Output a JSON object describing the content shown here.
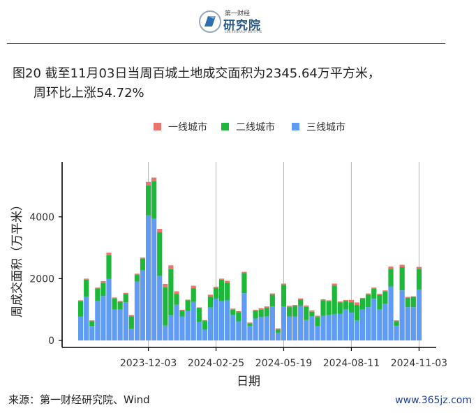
{
  "header": {
    "logo_line1": "第一财经",
    "logo_line2": "研究院",
    "logo_line3": "CBN RESEARCH INSTITUTE"
  },
  "title": {
    "line1": "图20 截至11月03日当周百城土地成交面积为2345.64万平方米，",
    "line2": "周环比上涨54.72%"
  },
  "footer": {
    "source": "来源：第一财经研究院、Wind",
    "watermark": "www.365jz.com"
  },
  "colors": {
    "tier1": "#E8766E",
    "tier2": "#1DB83A",
    "tier3": "#5F9BF2"
  },
  "chart_data": {
    "type": "bar",
    "stacked": true,
    "xlabel": "日期",
    "ylabel": "周成交面积（万平米）",
    "ylim": [
      0,
      5800
    ],
    "yticks": [
      0,
      2000,
      4000
    ],
    "xtick_labels": [
      "2023-12-03",
      "2024-02-25",
      "2024-05-19",
      "2024-08-11",
      "2024-11-03"
    ],
    "xtick_bar_index": [
      12,
      24,
      36,
      48,
      60
    ],
    "grid": "vertical lines at x ticks",
    "legend_position": "top",
    "series": [
      {
        "name": "一线城市",
        "color": "#E8766E",
        "values": [
          30,
          30,
          30,
          30,
          60,
          80,
          30,
          30,
          30,
          40,
          40,
          30,
          120,
          120,
          110,
          110,
          120,
          90,
          20,
          20,
          80,
          20,
          30,
          60,
          40,
          30,
          60,
          30,
          30,
          40,
          40,
          30,
          40,
          40,
          40,
          40,
          40,
          40,
          30,
          40,
          40,
          40,
          40,
          30,
          30,
          60,
          30,
          30,
          80,
          80,
          30,
          40,
          40,
          40,
          40,
          70,
          30,
          80,
          30,
          30,
          60
        ]
      },
      {
        "name": "二线城市",
        "color": "#1DB83A",
        "values": [
          500,
          550,
          150,
          400,
          420,
          770,
          360,
          250,
          270,
          400,
          220,
          370,
          960,
          1200,
          1410,
          1240,
          1500,
          340,
          200,
          350,
          440,
          450,
          280,
          350,
          350,
          700,
          570,
          180,
          300,
          650,
          70,
          250,
          240,
          280,
          380,
          100,
          700,
          300,
          350,
          200,
          430,
          140,
          300,
          500,
          450,
          930,
          370,
          280,
          330,
          500,
          350,
          400,
          320,
          470,
          400,
          570,
          150,
          750,
          300,
          320,
          670
        ]
      },
      {
        "name": "三线城市",
        "color": "#5F9BF2",
        "values": [
          770,
          1420,
          470,
          1280,
          1440,
          1990,
          1000,
          1000,
          1240,
          380,
          1900,
          2280,
          4050,
          3950,
          2090,
          480,
          810,
          1160,
          770,
          950,
          1250,
          600,
          350,
          1070,
          1350,
          1270,
          1300,
          820,
          620,
          1530,
          470,
          710,
          760,
          780,
          1100,
          250,
          1100,
          780,
          770,
          1120,
          660,
          790,
          460,
          800,
          820,
          850,
          860,
          1000,
          900,
          650,
          1000,
          1080,
          1350,
          1000,
          1180,
          1750,
          470,
          1620,
          1080,
          1080,
          1650
        ]
      }
    ]
  }
}
